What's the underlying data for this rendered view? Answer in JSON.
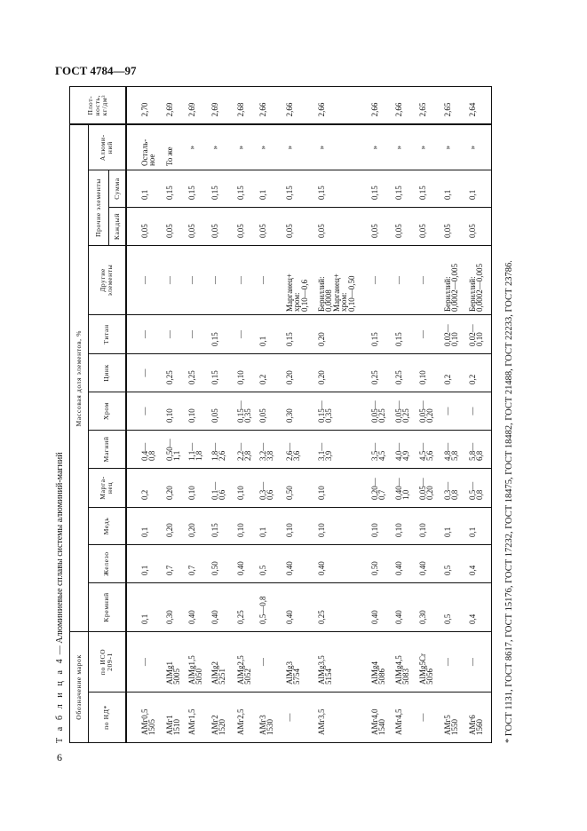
{
  "header": {
    "doc_code": "ГОСТ 4784—97"
  },
  "page_number": "6",
  "table": {
    "caption_label": "Т а б л и ц а  4",
    "caption_text": " — Алюминиевые сплавы системы алюминий-магний",
    "group_headers": {
      "designation": "Обозначение марок",
      "mass_fraction": "Массовая доля элементов, %",
      "other_elements": "Прочие элементы"
    },
    "columns": {
      "nd": "по НД*",
      "iso": "по ИСО\n209-1",
      "si": "Кремний",
      "fe": "Железо",
      "cu": "Медь",
      "mn": "Марга-\nнец",
      "mg": "Магний",
      "cr": "Хром",
      "zn": "Цинк",
      "ti": "Титан",
      "other": "Другие\nэлементы",
      "each": "Каждый",
      "sum": "Сумма",
      "al": "Алюми-\nний",
      "density": "Плот-\nность,\nкг/дм³"
    },
    "rows": [
      [
        "АМг0,5\n1505",
        "—",
        "0,1",
        "0,1",
        "0,1",
        "0,2",
        "0,4—\n0,8",
        "—",
        "—",
        "—",
        "—",
        "0,05",
        "0,1",
        "Осталь-\nное",
        "2,70"
      ],
      [
        "АМг1\n1510",
        "AlMg1\n5005",
        "0,30",
        "0,7",
        "0,20",
        "0,20",
        "0,50—\n1,1",
        "0,10",
        "0,25",
        "—",
        "—",
        "0,05",
        "0,15",
        "То же",
        "2,69"
      ],
      [
        "АМг1,5",
        "AlMg1,5\n5050",
        "0,40",
        "0,7",
        "0,20",
        "0,10",
        "1,1—\n1,8",
        "0,10",
        "0,25",
        "—",
        "—",
        "0,05",
        "0,15",
        "»",
        "2,69"
      ],
      [
        "АМг2\n1520",
        "AlMg2\n5251",
        "0,40",
        "0,50",
        "0,15",
        "0,1—\n0,6",
        "1,8—\n2,6",
        "0,05",
        "0,15",
        "0,15",
        "—",
        "0,05",
        "0,15",
        "»",
        "2,69"
      ],
      [
        "АМг2,5",
        "AlMg2,5\n5052",
        "0,25",
        "0,40",
        "0,10",
        "0,10",
        "2,2—\n2,8",
        "0,15—\n0,35",
        "0,10",
        "—",
        "—",
        "0,05",
        "0,15",
        "»",
        "2,68"
      ],
      [
        "АМг3\n1530",
        "—",
        "0,5—0,8",
        "0,5",
        "0,1",
        "0,3—\n0,6",
        "3,2—\n3,8",
        "0,05",
        "0,2",
        "0,1",
        "—",
        "0,05",
        "0,1",
        "»",
        "2,66"
      ],
      [
        "—",
        "AlMg3\n5754",
        "0,40",
        "0,40",
        "0,10",
        "0,50",
        "2,6—\n3,6",
        "0,30",
        "0,20",
        "0,15",
        "Марганец+\nхром:\n0,10—0,6",
        "0,05",
        "0,15",
        "»",
        "2,66"
      ],
      [
        "АМг3,5",
        "AlMg3,5\n5154",
        "0,25",
        "0,40",
        "0,10",
        "0,10",
        "3,1—\n3,9",
        "0,15—\n0,35",
        "0,20",
        "0,20",
        "Бериллий:\n0,0008\nМарганец+\nхром:\n0,10—0,50",
        "0,05",
        "0,15",
        "»",
        "2,66"
      ],
      [
        "АМг4,0\n1540",
        "AlMg4\n5086",
        "0,40",
        "0,50",
        "0,10",
        "0,20—\n0,7",
        "3,5—\n4,5",
        "0,05—\n0,25",
        "0,25",
        "0,15",
        "—",
        "0,05",
        "0,15",
        "»",
        "2,66"
      ],
      [
        "АМг4,5",
        "AlMg4,5\n5083",
        "0,40",
        "0,40",
        "0,10",
        "0,40—\n1,0",
        "4,0—\n4,9",
        "0,05—\n0,25",
        "0,25",
        "0,15",
        "—",
        "0,05",
        "0,15",
        "»",
        "2,66"
      ],
      [
        "—",
        "AlMg5Cr\n5056",
        "0,30",
        "0,40",
        "0,10",
        "0,05—\n0,20",
        "4,5—\n5,6",
        "0,05—\n0,20",
        "0,10",
        "—",
        "—",
        "0,05",
        "0,15",
        "»",
        "2,65"
      ],
      [
        "АМг5\n1550",
        "—",
        "0,5",
        "0,5",
        "0,1",
        "0,3—\n0,8",
        "4,8—\n5,8",
        "—",
        "0,2",
        "0,02—\n0,10",
        "Бериллий:\n0,0002—0,005",
        "0,05",
        "0,1",
        "»",
        "2,65"
      ],
      [
        "АМг6\n1560",
        "—",
        "0,4",
        "0,4",
        "0,1",
        "0,5—\n0,8",
        "5,8—\n6,8",
        "—",
        "0,2",
        "0,02—\n0,10",
        "Бериллий:\n0,0002—0,005",
        "0,05",
        "0,1",
        "»",
        "2,64"
      ]
    ]
  },
  "footnote": "* ГОСТ 1131, ГОСТ 8617, ГОСТ 15176, ГОСТ 17232, ГОСТ 18475, ГОСТ 18482, ГОСТ 21488, ГОСТ 22233, ГОСТ 23786."
}
